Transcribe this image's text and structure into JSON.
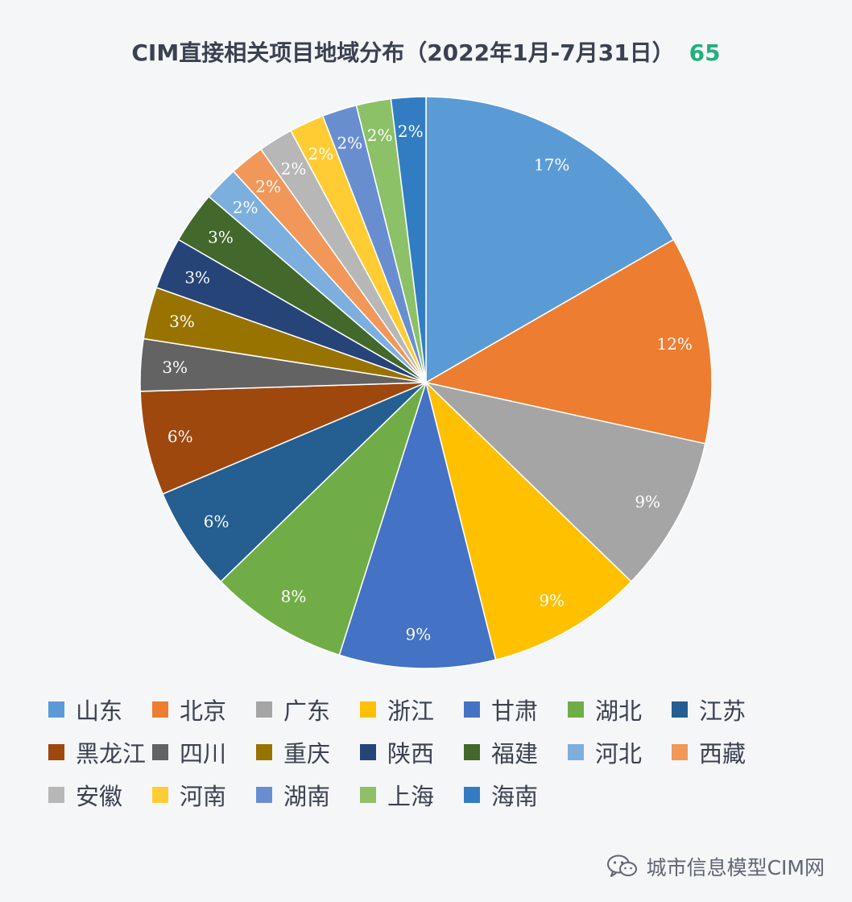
{
  "title": "CIM直接相关项目地域分布（2022年1月-7月31日）",
  "total_count": "65",
  "total_color": "#22b07d",
  "watermark": {
    "text": "城市信息模型CIM网",
    "icon": "wechat-icon"
  },
  "chart_data": {
    "type": "pie",
    "title": "CIM直接相关项目地域分布（2022年1月-7月31日）",
    "legend_position": "bottom",
    "start": "top, clockwise",
    "slices": [
      {
        "label": "山东",
        "value": 17,
        "display": "17%",
        "color": "#5b9bd5"
      },
      {
        "label": "北京",
        "value": 12,
        "display": "12%",
        "color": "#ed7d31"
      },
      {
        "label": "广东",
        "value": 9,
        "display": "9%",
        "color": "#a5a5a5"
      },
      {
        "label": "浙江",
        "value": 9,
        "display": "9%",
        "color": "#ffc000"
      },
      {
        "label": "甘肃",
        "value": 9,
        "display": "9%",
        "color": "#4472c4"
      },
      {
        "label": "湖北",
        "value": 8,
        "display": "8%",
        "color": "#70ad47"
      },
      {
        "label": "江苏",
        "value": 6,
        "display": "6%",
        "color": "#255e91"
      },
      {
        "label": "黑龙江",
        "value": 6,
        "display": "6%",
        "color": "#9e480e"
      },
      {
        "label": "四川",
        "value": 3,
        "display": "3%",
        "color": "#636363"
      },
      {
        "label": "重庆",
        "value": 3,
        "display": "3%",
        "color": "#997300"
      },
      {
        "label": "陕西",
        "value": 3,
        "display": "3%",
        "color": "#264478"
      },
      {
        "label": "福建",
        "value": 3,
        "display": "3%",
        "color": "#43682b"
      },
      {
        "label": "河北",
        "value": 2,
        "display": "2%",
        "color": "#7cafdd"
      },
      {
        "label": "西藏",
        "value": 2,
        "display": "2%",
        "color": "#f1975a"
      },
      {
        "label": "安徽",
        "value": 2,
        "display": "2%",
        "color": "#b7b7b7"
      },
      {
        "label": "河南",
        "value": 2,
        "display": "2%",
        "color": "#ffcd33"
      },
      {
        "label": "湖南",
        "value": 2,
        "display": "2%",
        "color": "#698ed0"
      },
      {
        "label": "上海",
        "value": 2,
        "display": "2%",
        "color": "#8cc168"
      },
      {
        "label": "海南",
        "value": 2,
        "display": "2%",
        "color": "#327dc2"
      }
    ]
  }
}
